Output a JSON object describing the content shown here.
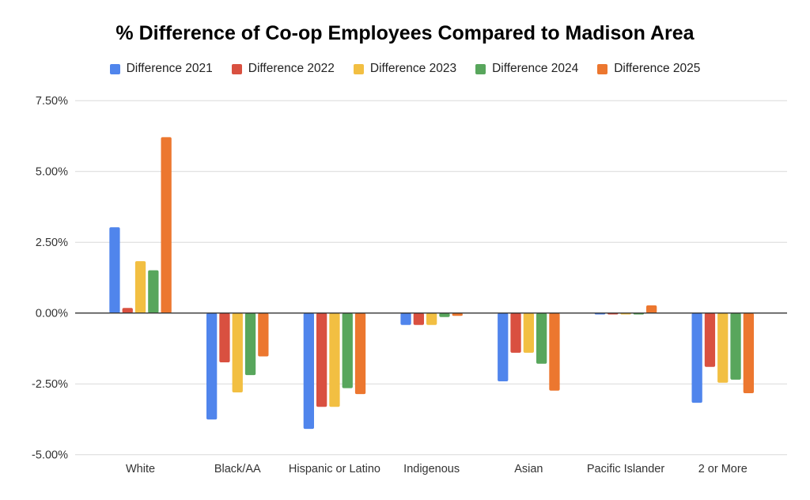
{
  "chart_data": {
    "type": "bar",
    "title": "% Difference of Co-op Employees Compared to Madison Area",
    "xlabel": "",
    "ylabel": "",
    "categories": [
      "White",
      "Black/AA",
      "Hispanic or Latino",
      "Indigenous",
      "Asian",
      "Pacific Islander",
      "2 or More"
    ],
    "series": [
      {
        "name": "Difference 2021",
        "color": "#5085ec",
        "values": [
          3.03,
          -3.76,
          -4.09,
          -0.42,
          -2.41,
          -0.05,
          -3.17
        ]
      },
      {
        "name": "Difference 2022",
        "color": "#d95040",
        "values": [
          0.18,
          -1.74,
          -3.31,
          -0.42,
          -1.4,
          -0.05,
          -1.9
        ]
      },
      {
        "name": "Difference 2023",
        "color": "#f2bf42",
        "values": [
          1.83,
          -2.8,
          -3.31,
          -0.42,
          -1.4,
          -0.05,
          -2.46
        ]
      },
      {
        "name": "Difference 2024",
        "color": "#58a65c",
        "values": [
          1.51,
          -2.19,
          -2.65,
          -0.14,
          -1.79,
          -0.05,
          -2.35
        ]
      },
      {
        "name": "Difference 2025",
        "color": "#ec772f",
        "values": [
          6.21,
          -1.53,
          -2.86,
          -0.1,
          -2.74,
          0.27,
          -2.83
        ]
      }
    ],
    "ylim": [
      -5,
      7.5
    ],
    "yticks": [
      "7.50%",
      "5.00%",
      "2.50%",
      "0.00%",
      "-2.50%",
      "-5.00%"
    ],
    "ytick_values": [
      7.5,
      5,
      2.5,
      0,
      -2.5,
      -5
    ],
    "grid": true,
    "legend_position": "top"
  }
}
